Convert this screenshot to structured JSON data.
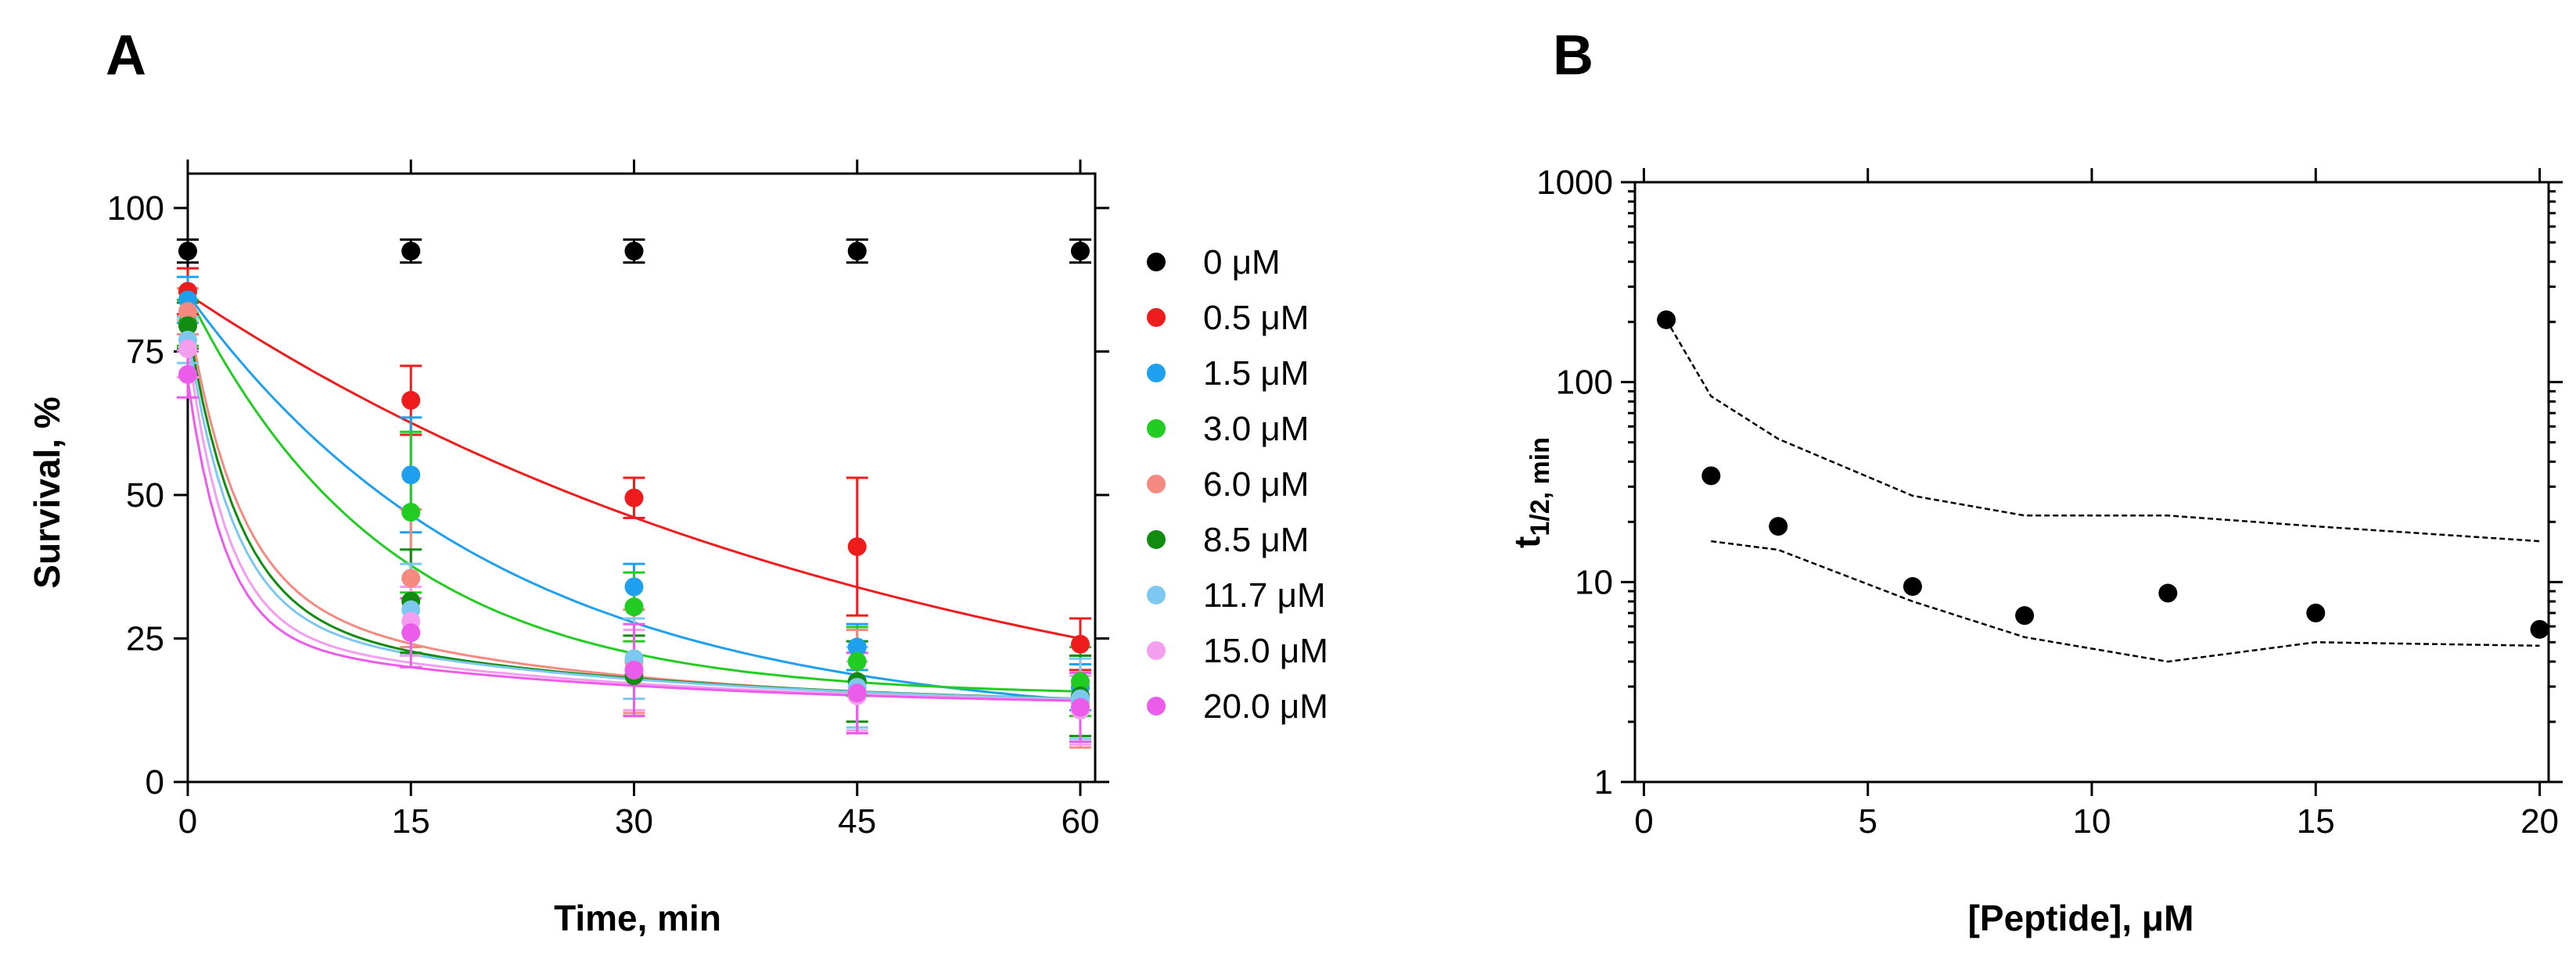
{
  "chart_data": [
    {
      "panel": "A",
      "type": "scatter",
      "xlabel": "Time, min",
      "ylabel": "Survival, %",
      "xlim": [
        0,
        61
      ],
      "ylim": [
        0,
        106
      ],
      "xticks": [
        0,
        15,
        30,
        45,
        60
      ],
      "yticks": [
        0,
        25,
        50,
        75,
        100
      ],
      "x": [
        0,
        15,
        30,
        45,
        60
      ],
      "legend_position": "right",
      "series": [
        {
          "name": "0 μM",
          "color": "#000000",
          "values": [
            92.5,
            92.5,
            92.5,
            92.5,
            92.5
          ],
          "err": [
            2,
            2,
            2,
            2,
            2
          ],
          "fit": "flat"
        },
        {
          "name": "0.5 μM",
          "color": "#ee1c1c",
          "values": [
            85.5,
            66.5,
            49.5,
            41,
            24
          ],
          "err": [
            4,
            6,
            3.5,
            12,
            4.5
          ],
          "fit": {
            "start": 85,
            "plateau": 0,
            "k": 0.0204,
            "frac_fast": 0
          }
        },
        {
          "name": "1.5 μM",
          "color": "#1ea0ee",
          "values": [
            84,
            53.5,
            34,
            23.5,
            16.5
          ],
          "err": [
            4,
            10,
            4,
            4,
            4
          ],
          "fit": {
            "start": 85,
            "plateau": 10,
            "k": 0.048,
            "frac_fast": 0
          }
        },
        {
          "name": "3.0 μM",
          "color": "#22cc22",
          "values": [
            80,
            47,
            30.5,
            21,
            17.5
          ],
          "err": [
            4,
            14,
            6,
            6,
            6
          ],
          "fit": {
            "start": 85,
            "plateau": 15,
            "k": 0.075,
            "frac_fast": 0
          }
        },
        {
          "name": "6.0 μM",
          "color": "#f48a80",
          "values": [
            82,
            35.5,
            21,
            17.5,
            14
          ],
          "err": [
            4,
            12,
            9,
            9,
            8
          ],
          "fit": {
            "start": 82,
            "plateau": 13,
            "k": 0.3,
            "k2": 0.045,
            "frac_fast": 0.7
          }
        },
        {
          "name": "8.5 μM",
          "color": "#118c11",
          "values": [
            79.5,
            31.5,
            18.5,
            17.5,
            15
          ],
          "err": [
            4,
            9,
            7,
            7,
            7
          ],
          "fit": {
            "start": 80,
            "plateau": 13,
            "k": 0.3,
            "k2": 0.04,
            "frac_fast": 0.75
          }
        },
        {
          "name": "11.7 μM",
          "color": "#7cc8f0",
          "values": [
            77,
            30,
            21.5,
            16.5,
            14.5
          ],
          "err": [
            4,
            8,
            7,
            7,
            7
          ],
          "fit": {
            "start": 78,
            "plateau": 13,
            "k": 0.33,
            "k2": 0.04,
            "frac_fast": 0.75
          }
        },
        {
          "name": "15.0 μM",
          "color": "#f49ef0",
          "values": [
            75.5,
            28,
            19.5,
            15,
            12.5
          ],
          "err": [
            5,
            6,
            7,
            6,
            6
          ],
          "fit": {
            "start": 76,
            "plateau": 13,
            "k": 0.38,
            "k2": 0.04,
            "frac_fast": 0.78
          }
        },
        {
          "name": "20.0 μM",
          "color": "#ec5cea",
          "values": [
            71,
            26,
            19.5,
            15.5,
            13
          ],
          "err": [
            4,
            6,
            8,
            7,
            6
          ],
          "fit": {
            "start": 70,
            "plateau": 13,
            "k": 0.4,
            "k2": 0.04,
            "frac_fast": 0.78
          }
        }
      ]
    },
    {
      "panel": "B",
      "type": "scatter",
      "xlabel": "[Peptide], μM",
      "ylabel_main": "t",
      "ylabel_sub": "1/2, min",
      "yscale": "log",
      "xlim": [
        -0.2,
        20.2
      ],
      "ylim": [
        1,
        1000
      ],
      "xticks": [
        0,
        5,
        10,
        15,
        20
      ],
      "yticks": [
        1,
        10,
        100,
        1000
      ],
      "points": {
        "x": [
          0.5,
          1.5,
          3.0,
          6.0,
          8.5,
          11.7,
          15.0,
          20.0
        ],
        "y": [
          205,
          34,
          19,
          9.5,
          6.8,
          8.8,
          7.0,
          5.8
        ]
      },
      "upper_band": {
        "x": [
          0.5,
          1.5,
          3.0,
          6.0,
          8.5,
          11.7,
          15.0,
          20.0
        ],
        "y": [
          205,
          85,
          52,
          27,
          21.5,
          21.5,
          19,
          16
        ]
      },
      "lower_band": {
        "x": [
          1.5,
          3.0,
          6.0,
          8.5,
          11.7,
          15.0,
          20.0
        ],
        "y": [
          16,
          14.5,
          8,
          5.3,
          4.0,
          5.0,
          4.8
        ]
      }
    }
  ]
}
